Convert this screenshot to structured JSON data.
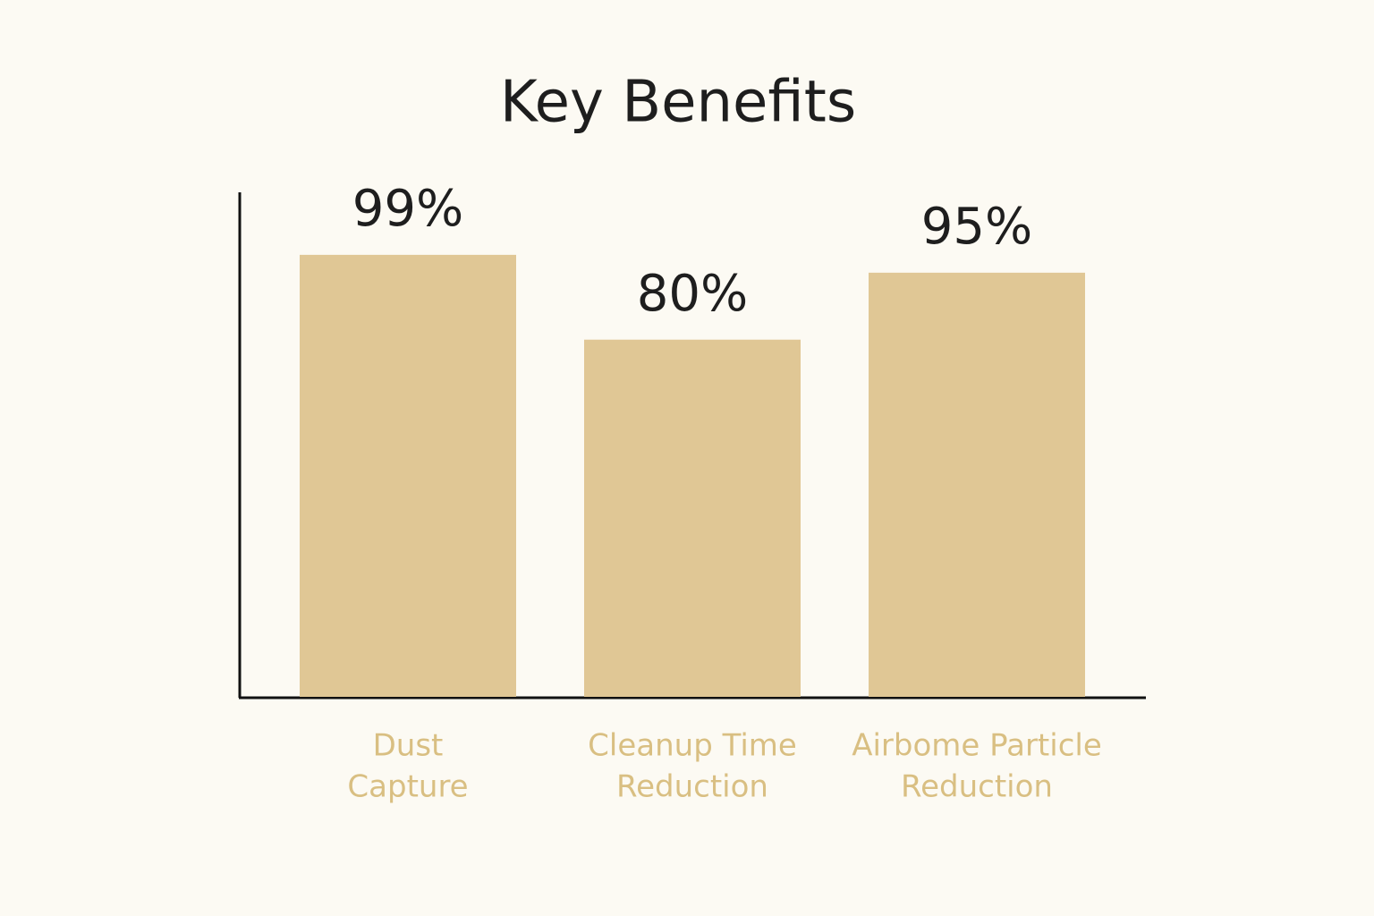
{
  "chart_data": {
    "type": "bar",
    "title": "Key Benefits",
    "categories": [
      [
        "Dust",
        "Capture"
      ],
      [
        "Cleanup Time",
        "Reduction"
      ],
      [
        "Airbome Particle",
        "Reduction"
      ]
    ],
    "values": [
      99,
      80,
      95
    ],
    "value_labels": [
      "99%",
      "80%",
      "95%"
    ],
    "color": "#e0c795",
    "label_color": "#d9bf82",
    "ylim": [
      0,
      113
    ]
  }
}
